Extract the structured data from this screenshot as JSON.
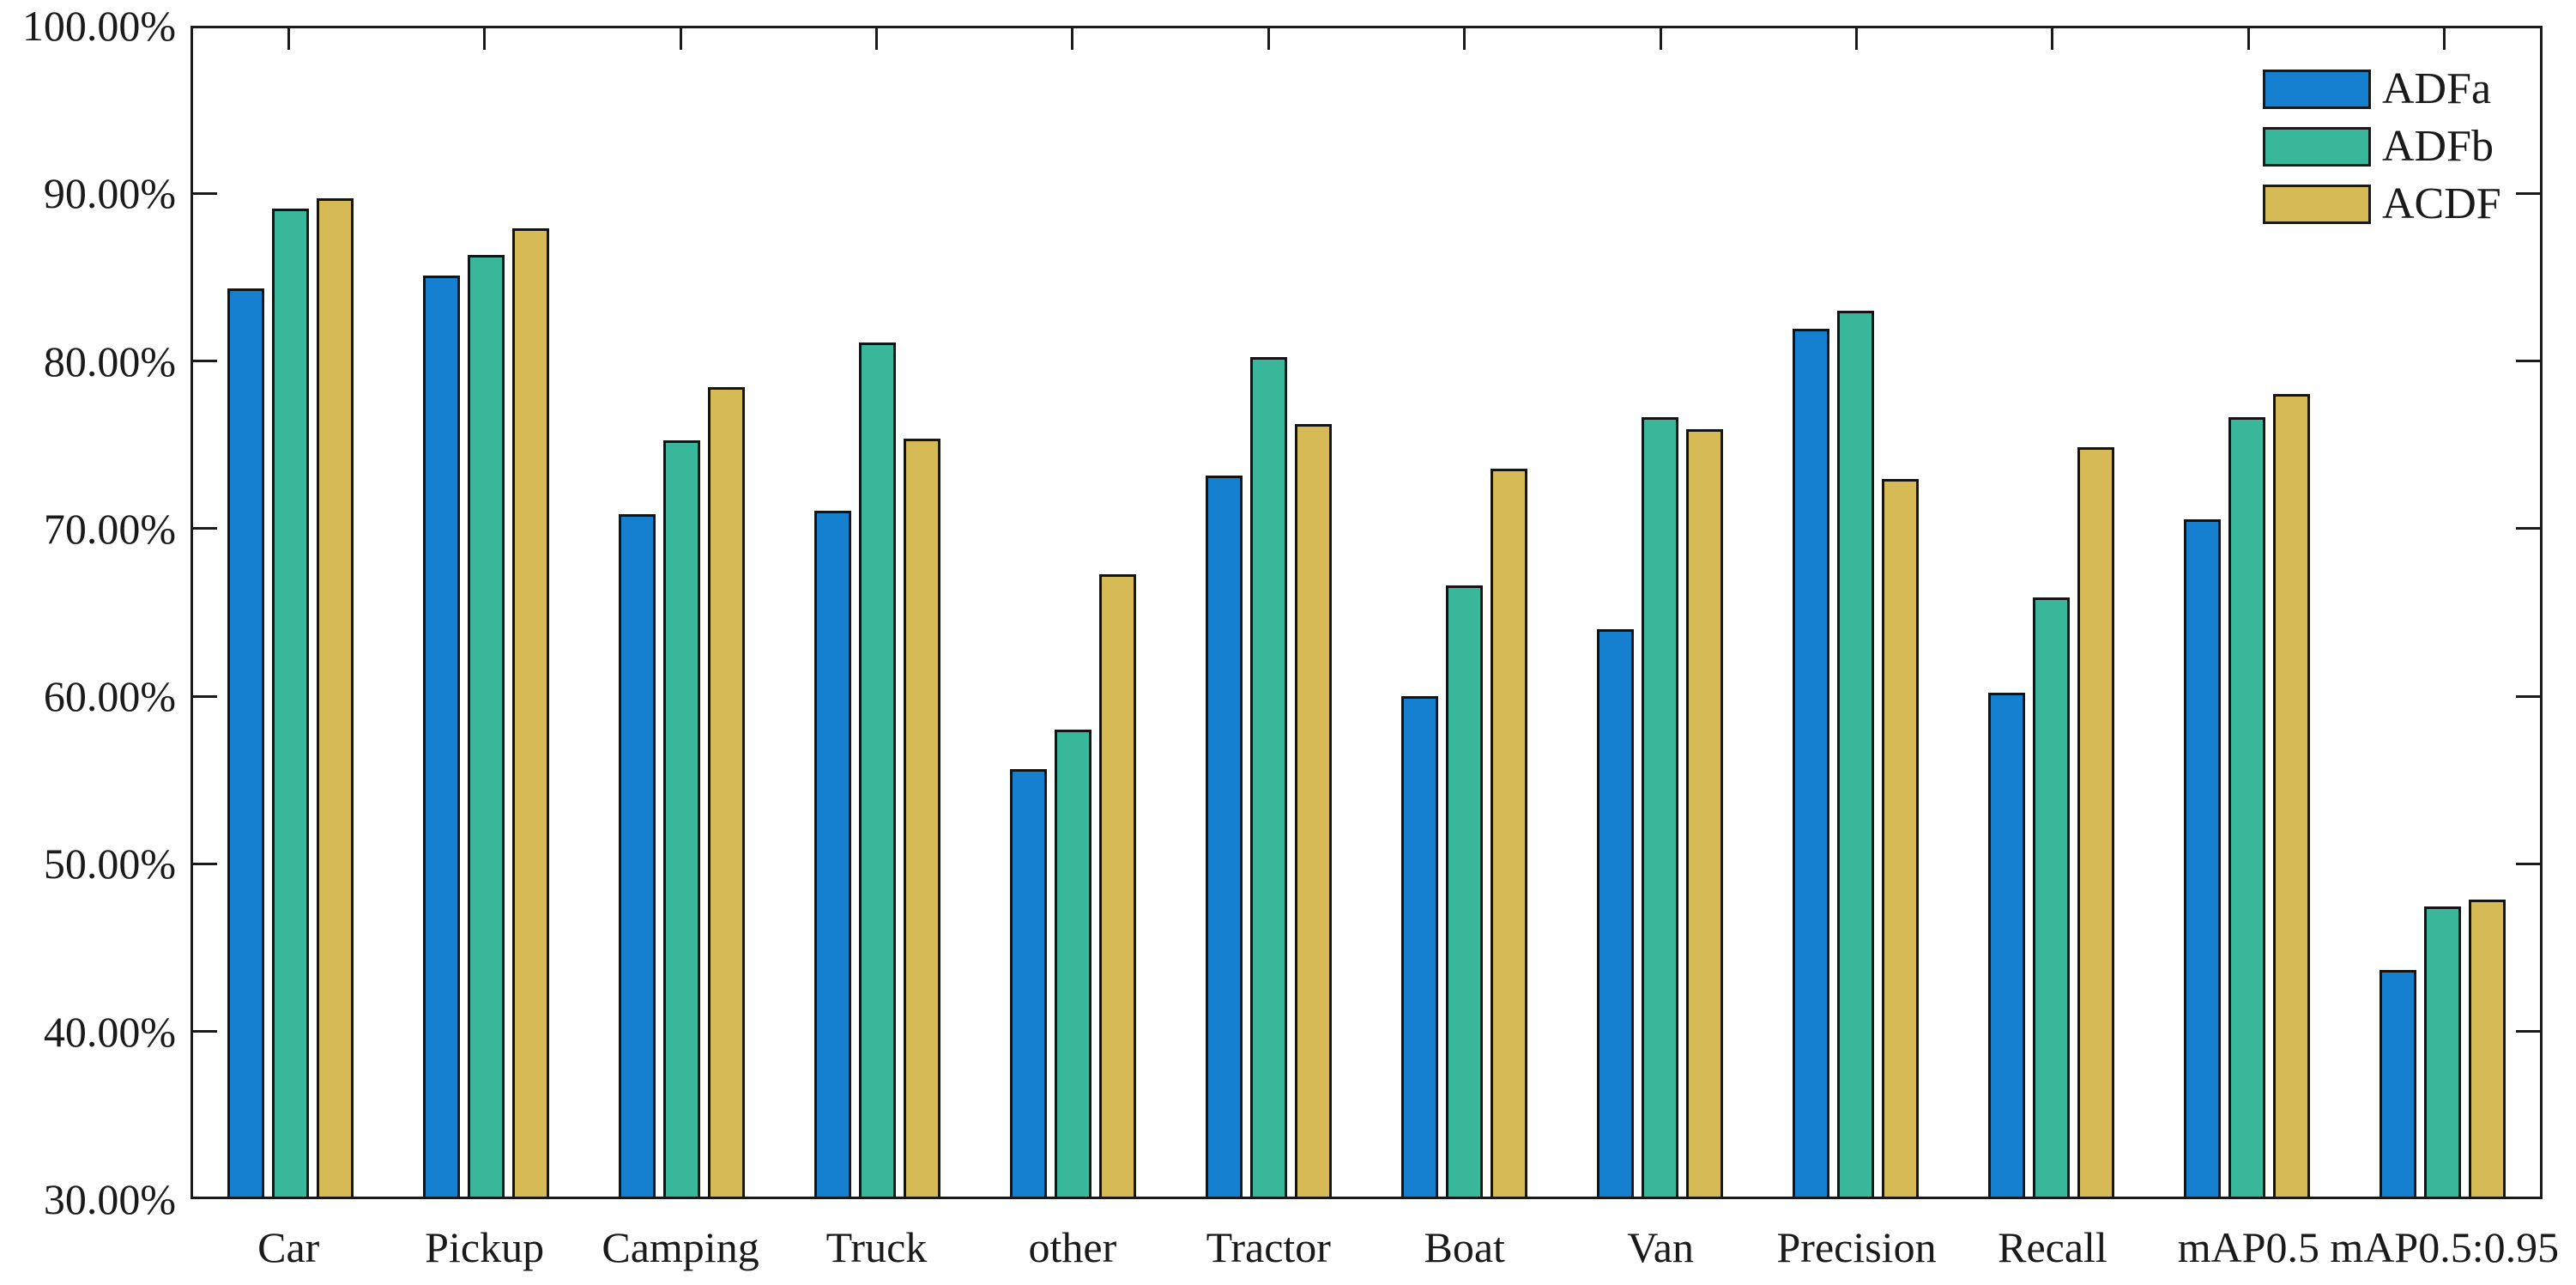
{
  "figure": {
    "background": "#ffffff",
    "axis_color": "#1a1a1a",
    "text_color": "#1a1a1a"
  },
  "y_axis": {
    "tick_labels": [
      "100.00%",
      "90.00%",
      "80.00%",
      "70.00%",
      "60.00%",
      "50.00%",
      "40.00%",
      "30.00%"
    ],
    "min": 30,
    "max": 100,
    "step": 10
  },
  "chart_data": {
    "type": "bar",
    "title": "",
    "xlabel": "",
    "ylabel": "",
    "grid": "off",
    "legend_position": "top-right-inside",
    "ylim": [
      30,
      100
    ],
    "ytick_format": "percent_2dp",
    "categories": [
      "Car",
      "Pickup",
      "Camping",
      "Truck",
      "other",
      "Tractor",
      "Boat",
      "Van",
      "Precision",
      "Recall",
      "mAP0.5",
      "mAP0.5:0.95"
    ],
    "series": [
      {
        "name": "ADFa",
        "color": "#1580d0",
        "values": [
          84.4,
          85.2,
          70.9,
          71.1,
          55.6,
          73.2,
          60.0,
          64.0,
          82.0,
          60.2,
          70.6,
          43.6
        ]
      },
      {
        "name": "ADFb",
        "color": "#38b79b",
        "values": [
          89.2,
          86.4,
          75.3,
          81.2,
          58.0,
          80.3,
          66.6,
          76.7,
          83.1,
          65.9,
          76.7,
          47.4
        ]
      },
      {
        "name": "ACDF",
        "color": "#d6ba55",
        "values": [
          89.8,
          88.0,
          78.5,
          75.4,
          67.3,
          76.3,
          73.6,
          76.0,
          73.0,
          74.9,
          78.1,
          47.8
        ]
      }
    ]
  }
}
